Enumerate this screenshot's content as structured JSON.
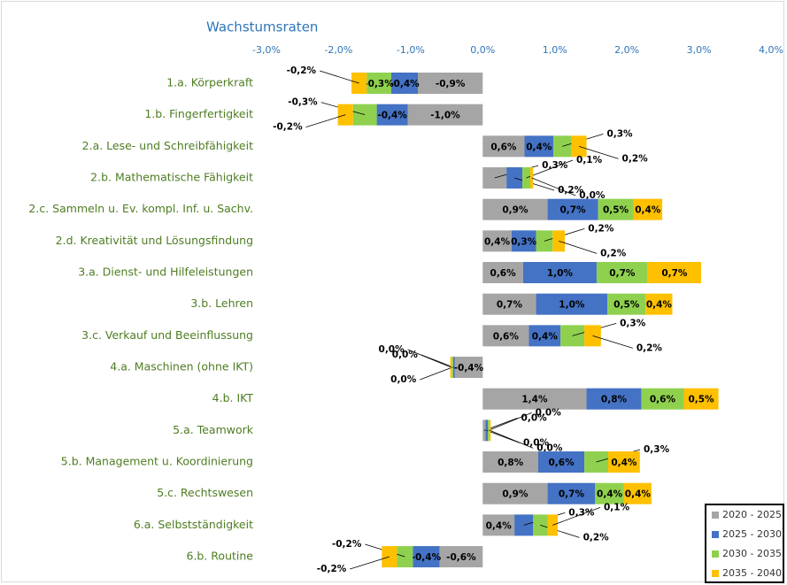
{
  "chart_data": {
    "type": "stacked_barh",
    "title": "Wachstumsraten",
    "categories": [
      "1.a. Körperkraft",
      "1.b. Fingerfertigkeit",
      "2.a. Lese- und Schreibfähigkeit",
      "2.b. Mathematische Fähigkeit",
      "2.c. Sammeln u. Ev. kompl. Inf. u. Sachv.",
      "2.d. Kreativität und Lösungsfindung",
      "3.a. Dienst- und Hilfeleistungen",
      "3.b. Lehren",
      "3.c. Verkauf und Beeinflussung",
      "4.a. Maschinen (ohne IKT)",
      "4.b. IKT",
      "5.a. Teamwork",
      "5.b. Management u. Koordinierung",
      "5.c. Rechtswesen",
      "6.a. Selbstständigkeit",
      "6.b. Routine"
    ],
    "series": [
      {
        "name": "2020 - 2025",
        "color": "#a5a5a5",
        "values": [
          -0.9,
          -1.04,
          0.58,
          0.33,
          0.9,
          0.4,
          0.56,
          0.74,
          0.64,
          -0.39,
          1.44,
          0.04,
          0.77,
          0.9,
          0.44,
          -0.6
        ],
        "value_labels": [
          "-0,9%",
          "-1,0%",
          "0,6%",
          "0,3%",
          "0,9%",
          "0,4%",
          "0,6%",
          "0,7%",
          "0,6%",
          "-0,4%",
          "1,4%",
          "0,0%",
          "0,8%",
          "0,9%",
          "0,4%",
          "-0,6%"
        ]
      },
      {
        "name": "2025 - 2030",
        "color": "#4472c4",
        "values": [
          -0.37,
          -0.43,
          0.4,
          0.22,
          0.7,
          0.34,
          1.02,
          0.99,
          0.44,
          -0.02,
          0.76,
          0.03,
          0.64,
          0.66,
          0.26,
          -0.37
        ],
        "value_labels": [
          "-0,4%",
          "-0,4%",
          "0,4%",
          "0,2%",
          "0,7%",
          "0,3%",
          "1,0%",
          "1,0%",
          "0,4%",
          "0,0%",
          "0,8%",
          "0,0%",
          "0,6%",
          "0,7%",
          "0,3%",
          "-0,4%"
        ]
      },
      {
        "name": "2030 - 2035",
        "color": "#8fd14f",
        "values": [
          -0.34,
          -0.33,
          0.25,
          0.11,
          0.49,
          0.23,
          0.71,
          0.53,
          0.33,
          -0.02,
          0.59,
          0.02,
          0.33,
          0.4,
          0.2,
          -0.22
        ],
        "value_labels": [
          "-0,3%",
          "-0,3%",
          "0,3%",
          "0,1%",
          "0,5%",
          "0,2%",
          "0,7%",
          "0,5%",
          "0,3%",
          "0,0%",
          "0,6%",
          "0,0%",
          "0,3%",
          "0,4%",
          "0,2%",
          "-0,2%"
        ]
      },
      {
        "name": "2035 - 2040",
        "color": "#ffc000",
        "values": [
          -0.21,
          -0.21,
          0.21,
          0.04,
          0.4,
          0.17,
          0.74,
          0.37,
          0.23,
          -0.02,
          0.48,
          0.02,
          0.44,
          0.38,
          0.14,
          -0.21
        ],
        "value_labels": [
          "-0,2%",
          "-0,2%",
          "0,2%",
          "0,0%",
          "0,4%",
          "0,2%",
          "0,7%",
          "0,4%",
          "0,2%",
          "0,0%",
          "0,5%",
          "0,0%",
          "0,4%",
          "0,4%",
          "0,1%",
          "-0,2%"
        ]
      }
    ],
    "xlim": [
      -3,
      4
    ],
    "xticks": [
      {
        "value": -3,
        "label": "-3,0%"
      },
      {
        "value": -2,
        "label": "-2,0%"
      },
      {
        "value": -1,
        "label": "-1,0%"
      },
      {
        "value": 0,
        "label": "0,0%"
      },
      {
        "value": 1,
        "label": "1,0%"
      },
      {
        "value": 2,
        "label": "2,0%"
      },
      {
        "value": 3,
        "label": "3,0%"
      },
      {
        "value": 4,
        "label": "4,0%"
      }
    ],
    "grid": false,
    "legend": "lower right"
  }
}
